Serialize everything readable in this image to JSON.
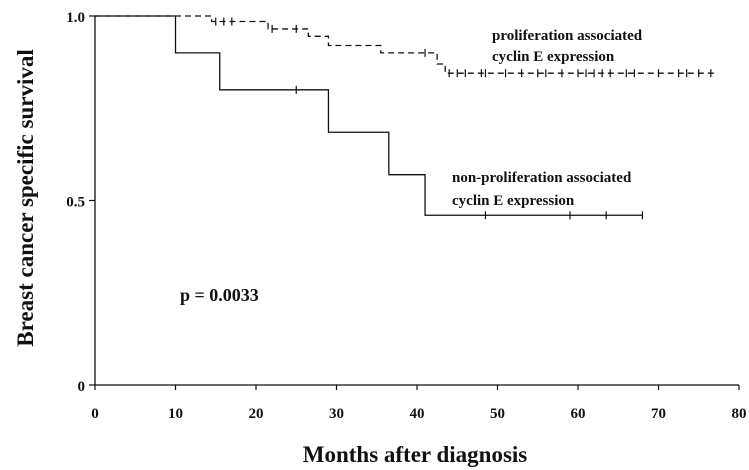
{
  "chart_data": {
    "type": "line",
    "chart_subtype": "kaplan-meier survival curve",
    "xlabel": "Months after diagnosis",
    "ylabel": "Breast cancer specific survival",
    "xlim": [
      0,
      80
    ],
    "ylim": [
      0,
      1.0
    ],
    "x_ticks": [
      "0",
      "10",
      "20",
      "30",
      "40",
      "50",
      "60",
      "70",
      "80"
    ],
    "y_ticks": [
      "0",
      "0.5",
      "1.0"
    ],
    "grid": false,
    "legend": "none (series labelled by inline annotations)",
    "p_value_label": "p = 0.0033",
    "series": [
      {
        "label_line1": "proliferation associated",
        "label_line2": "cyclin E expression",
        "line_style": "dashed",
        "color": "#111111",
        "steps": [
          [
            0,
            1.0
          ],
          [
            14.5,
            0.985
          ],
          [
            21.5,
            0.965
          ],
          [
            26.5,
            0.945
          ],
          [
            29,
            0.92
          ],
          [
            35.5,
            0.9
          ],
          [
            42.5,
            0.87
          ],
          [
            43.5,
            0.845
          ],
          [
            77,
            0.845
          ]
        ],
        "censor_x": [
          15,
          16,
          17,
          22,
          25,
          41,
          44,
          45,
          46,
          48,
          48.5,
          51,
          53,
          55,
          56,
          58,
          60,
          61,
          62,
          63,
          64,
          66,
          67,
          70,
          72.5,
          73.5,
          75,
          76.5
        ]
      },
      {
        "label_line1": "non-proliferation associated",
        "label_line2": "cyclin E expression",
        "line_style": "solid",
        "color": "#111111",
        "steps": [
          [
            0,
            1.0
          ],
          [
            10,
            0.9
          ],
          [
            15.5,
            0.8
          ],
          [
            29,
            0.685
          ],
          [
            36.5,
            0.57
          ],
          [
            41,
            0.46
          ],
          [
            68,
            0.46
          ]
        ],
        "censor_x": [
          25,
          48.5,
          59,
          63.5,
          68
        ]
      }
    ]
  }
}
